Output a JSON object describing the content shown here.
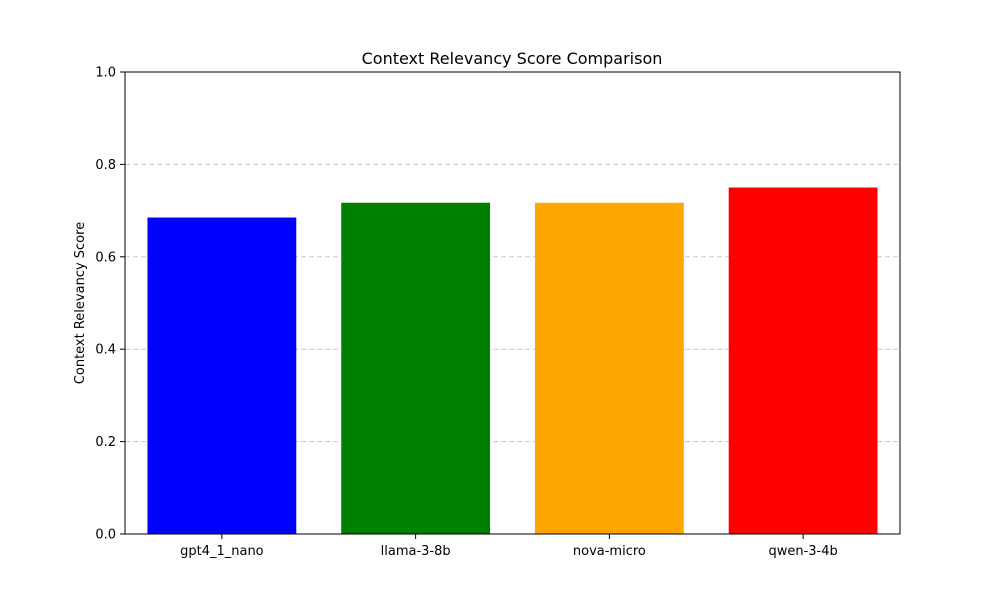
{
  "chart_data": {
    "type": "bar",
    "title": "Context Relevancy Score Comparison",
    "xlabel": "",
    "ylabel": "Context Relevancy Score",
    "categories": [
      "gpt4_1_nano",
      "llama-3-8b",
      "nova-micro",
      "qwen-3-4b"
    ],
    "values": [
      0.685,
      0.717,
      0.717,
      0.75
    ],
    "colors": [
      "#0000ff",
      "#008000",
      "#ffa500",
      "#ff0000"
    ],
    "ylim": [
      0,
      1.0
    ],
    "yticks": [
      "0.0",
      "0.2",
      "0.4",
      "0.6",
      "0.8",
      "1.0"
    ],
    "grid": "y-dashed",
    "legend": "none"
  }
}
